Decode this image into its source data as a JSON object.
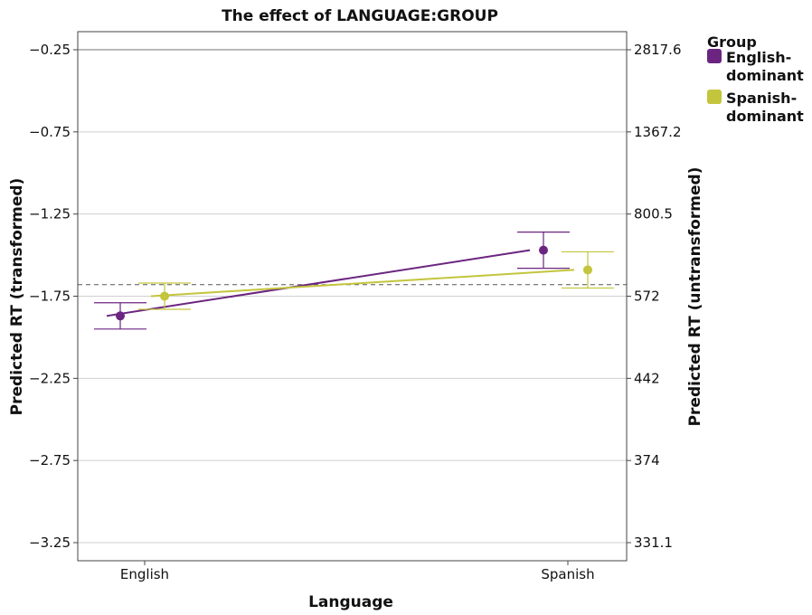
{
  "chart_data": {
    "type": "line",
    "title": "The effect of LANGUAGE:GROUP",
    "xlabel": "Language",
    "ylabel": "Predicted RT (transformed)",
    "ylabel_right": "Predicted RT (untransformed)",
    "categories": [
      "English",
      "Spanish"
    ],
    "ylim": [
      -3.36,
      -0.14
    ],
    "y_ticks": [
      -0.25,
      -0.75,
      -1.25,
      -1.75,
      -2.25,
      -2.75,
      -3.25
    ],
    "y_tick_labels": [
      "−0.25",
      "−0.75",
      "−1.25",
      "−1.75",
      "−2.25",
      "−2.75",
      "−3.25"
    ],
    "y_right_tick_labels": [
      "2817.6",
      "1367.2",
      "800.5",
      "572",
      "442",
      "374",
      "331.1"
    ],
    "reference_line": -1.68,
    "grid": true,
    "legend": {
      "title": "Group",
      "placement": "top-right",
      "entries": [
        {
          "label_lines": [
            "English-",
            "dominant"
          ],
          "color": "#6B2580"
        },
        {
          "label_lines": [
            "Spanish-",
            "dominant"
          ],
          "color": "#C3C53C"
        }
      ]
    },
    "series": [
      {
        "name": "English-dominant",
        "color": "#6B2580",
        "values": [
          -1.87,
          -1.47
        ],
        "lower": [
          -1.95,
          -1.58
        ],
        "upper": [
          -1.79,
          -1.36
        ]
      },
      {
        "name": "Spanish-dominant",
        "color": "#C3C53C",
        "values": [
          -1.75,
          -1.59
        ],
        "lower": [
          -1.83,
          -1.7
        ],
        "upper": [
          -1.67,
          -1.48
        ]
      }
    ]
  }
}
